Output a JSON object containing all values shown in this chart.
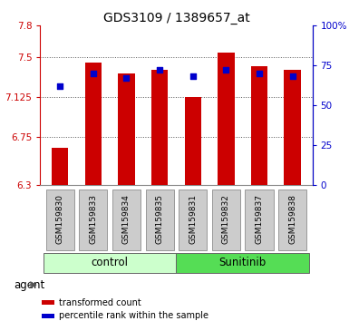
{
  "title": "GDS3109 / 1389657_at",
  "samples": [
    "GSM159830",
    "GSM159833",
    "GSM159834",
    "GSM159835",
    "GSM159831",
    "GSM159832",
    "GSM159837",
    "GSM159838"
  ],
  "bar_values": [
    6.65,
    7.45,
    7.35,
    7.38,
    7.13,
    7.55,
    7.42,
    7.38
  ],
  "percentile_values": [
    62,
    70,
    67,
    72,
    68,
    72,
    70,
    68
  ],
  "bar_color": "#cc0000",
  "dot_color": "#0000cc",
  "ylim_left": [
    6.3,
    7.8
  ],
  "ylim_right": [
    0,
    100
  ],
  "yticks_left": [
    6.3,
    6.75,
    7.125,
    7.5,
    7.8
  ],
  "ytick_labels_left": [
    "6.3",
    "6.75",
    "7.125",
    "7.5",
    "7.8"
  ],
  "yticks_right": [
    0,
    25,
    50,
    75,
    100
  ],
  "ytick_labels_right": [
    "0",
    "25",
    "50",
    "75",
    "100%"
  ],
  "groups": [
    {
      "label": "control",
      "indices": [
        0,
        1,
        2,
        3
      ],
      "color": "#ccffcc"
    },
    {
      "label": "Sunitinib",
      "indices": [
        4,
        5,
        6,
        7
      ],
      "color": "#55dd55"
    }
  ],
  "agent_label": "agent",
  "bar_width": 0.5,
  "grid_color": "#555555",
  "tick_bg_color": "#cccccc",
  "legend_items": [
    {
      "color": "#cc0000",
      "label": "transformed count"
    },
    {
      "color": "#0000cc",
      "label": "percentile rank within the sample"
    }
  ]
}
